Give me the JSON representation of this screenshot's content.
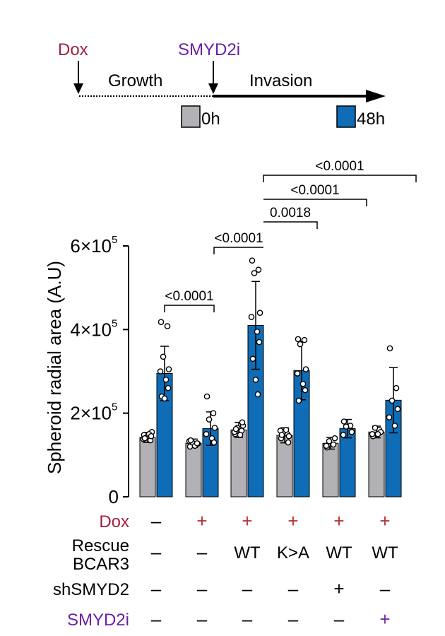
{
  "timeline": {
    "dox_label": "Dox",
    "inhibitor_label": "SMYD2i",
    "growth_label": "Growth",
    "invasion_label": "Invasion",
    "legend_0h": "0h",
    "legend_48h": "48h"
  },
  "colors": {
    "bar_0h": "#b2b2b6",
    "bar_48h": "#0e6db6",
    "dox_label": "#a3203f",
    "smyd2i_label": "#6b1fa6",
    "plus_dox": "#b8322f",
    "plus_smyd2i": "#7a2aa8"
  },
  "chart_data": {
    "type": "bar",
    "ylabel": "Spheroid radial area (A.U)",
    "ylim": [
      0,
      600000
    ],
    "yticks": [
      {
        "value": 0,
        "label": "0"
      },
      {
        "value": 200000,
        "label": "2×10",
        "exp": "5"
      },
      {
        "value": 400000,
        "label": "4×10",
        "exp": "5"
      },
      {
        "value": 600000,
        "label": "6×10",
        "exp": "5"
      }
    ],
    "series": [
      {
        "name": "0h",
        "values": [
          142000,
          128000,
          160000,
          147000,
          128000,
          155000
        ]
      },
      {
        "name": "48h",
        "values": [
          295000,
          163000,
          410000,
          302000,
          163000,
          231000
        ]
      }
    ],
    "errors": {
      "0h": [
        12000,
        10000,
        18000,
        18000,
        14000,
        14000
      ],
      "48h": [
        65000,
        40000,
        105000,
        70000,
        22000,
        78000
      ]
    },
    "points": {
      "0h": [
        [
          148000,
          135000,
          142000,
          155000,
          138000,
          150000,
          145000,
          140000
        ],
        [
          120000,
          125000,
          130000,
          127000,
          133000,
          122000,
          128000,
          135000
        ],
        [
          150000,
          158000,
          165000,
          170000,
          155000,
          148000,
          178000,
          162000
        ],
        [
          140000,
          150000,
          155000,
          145000,
          158000,
          160000,
          130000,
          148000
        ],
        [
          118000,
          125000,
          133000,
          140000,
          122000
        ],
        [
          145000,
          160000,
          165000,
          155000,
          150000,
          150000
        ]
      ],
      "48h": [
        [
          418000,
          408000,
          335000,
          305000,
          300000,
          280000,
          260000,
          240000,
          235000
        ],
        [
          240000,
          200000,
          185000,
          165000,
          150000,
          140000,
          130000
        ],
        [
          565000,
          543000,
          535000,
          440000,
          430000,
          395000,
          370000,
          330000,
          280000,
          245000
        ],
        [
          377000,
          375000,
          365000,
          305000,
          295000,
          270000,
          255000,
          230000
        ],
        [
          180000,
          170000,
          168000,
          155000,
          148000
        ],
        [
          355000,
          260000,
          230000,
          210000,
          190000,
          170000
        ]
      ]
    },
    "comparisons": [
      {
        "label": "<0.0001"
      },
      {
        "label": "<0.0001"
      },
      {
        "label": "0.0018"
      },
      {
        "label": "<0.0001"
      },
      {
        "label": "<0.0001"
      }
    ]
  },
  "conditions": {
    "rows": [
      {
        "label": "Dox",
        "values": [
          "–",
          "+",
          "+",
          "+",
          "+",
          "+"
        ]
      },
      {
        "label": "Rescue",
        "label2": "BCAR3",
        "values": [
          "–",
          "–",
          "WT",
          "K>A",
          "WT",
          "WT"
        ]
      },
      {
        "label": "shSMYD2",
        "values": [
          "–",
          "–",
          "–",
          "–",
          "+",
          "–"
        ]
      },
      {
        "label": "SMYD2i",
        "values": [
          "–",
          "–",
          "–",
          "–",
          "–",
          "+"
        ]
      }
    ]
  }
}
